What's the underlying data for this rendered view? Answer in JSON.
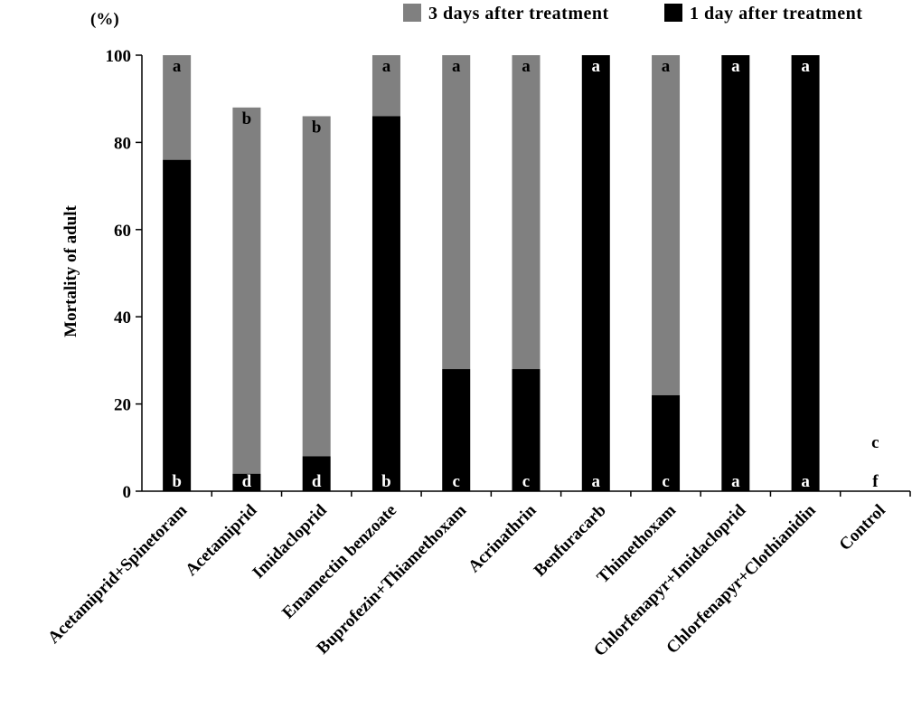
{
  "chart_data": {
    "type": "bar",
    "stacked": true,
    "unit_label": "(%)",
    "ylabel": "Mortality  of adult",
    "xlabel": "",
    "ylim": [
      0,
      100
    ],
    "yticks": [
      0,
      20,
      40,
      60,
      80,
      100
    ],
    "legend_position": "top-right",
    "categories": [
      "Acetamiprid+Spinetoram",
      "Acetamiprid",
      "Imidacloprid",
      "Emamectin benzoate",
      "Buprofezin+Thiamethoxam",
      "Acrinathrin",
      "Benfuracarb",
      "Thimethoxam",
      "Chlorfenapyr+Imidacloprid",
      "Chlorfenapyr+Clothianidin",
      "Control"
    ],
    "series": [
      {
        "name": "1 day after treatment",
        "color": "#000000",
        "values": [
          76,
          4,
          8,
          86,
          28,
          28,
          100,
          22,
          100,
          100,
          0
        ],
        "letters": [
          "b",
          "d",
          "d",
          "b",
          "c",
          "c",
          "a",
          "c",
          "a",
          "a",
          "f"
        ]
      },
      {
        "name": "3 days after treatment",
        "color": "#808080",
        "cumulative_values": [
          100,
          88,
          86,
          100,
          100,
          100,
          100,
          100,
          100,
          100,
          0
        ],
        "letters": [
          "a",
          "b",
          "b",
          "a",
          "a",
          "a",
          "a",
          "a",
          "a",
          "a",
          "c"
        ]
      }
    ]
  }
}
